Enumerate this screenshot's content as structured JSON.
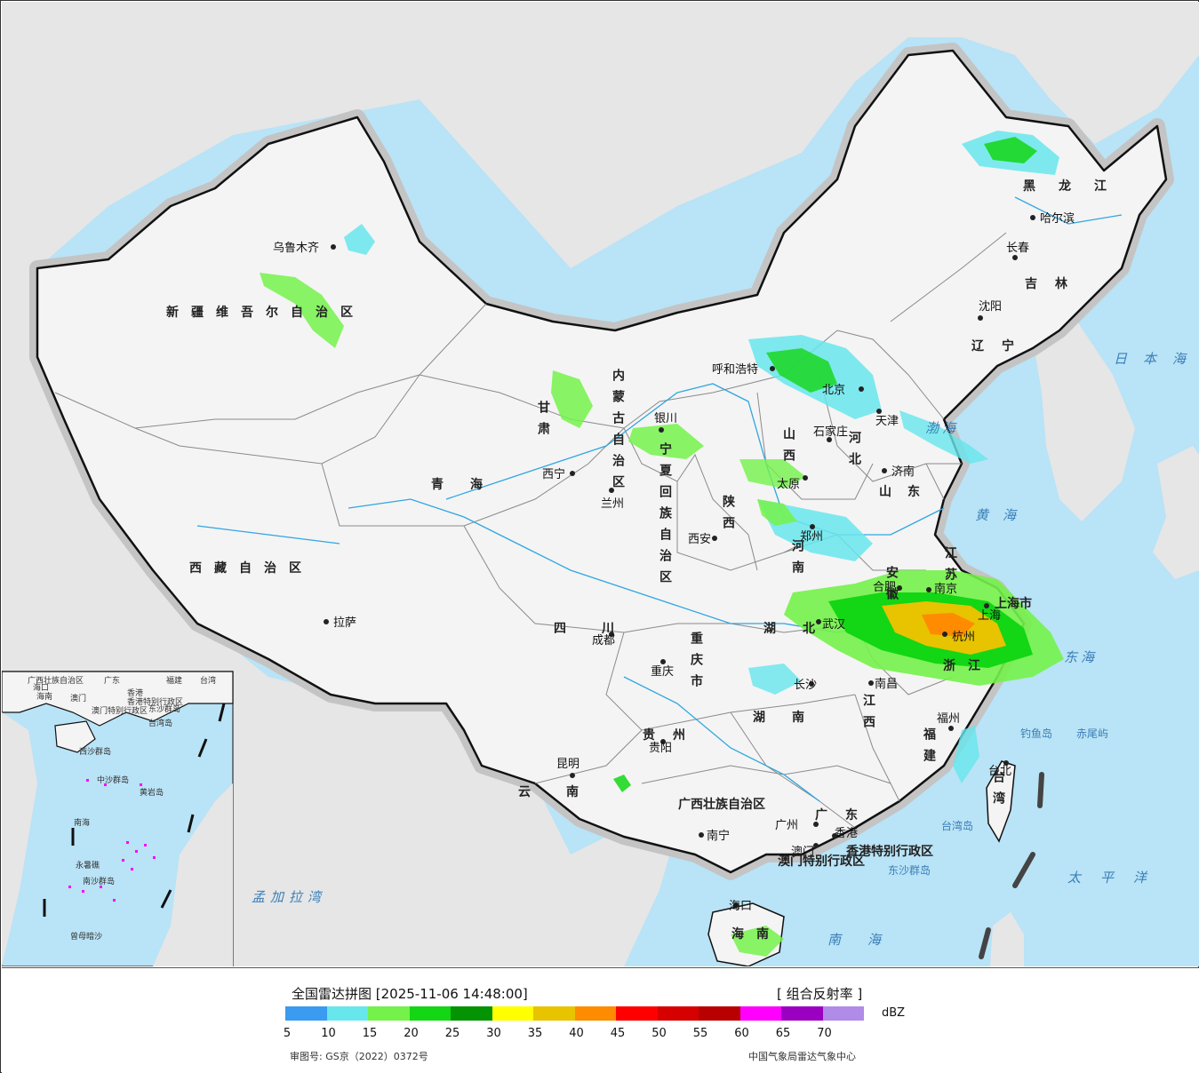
{
  "map": {
    "colors": {
      "sea": "#b9e3f6",
      "land_outside": "#e6e6e6",
      "china": "#f4f4f4",
      "border": "#111111",
      "halo": "#bdbdbd",
      "river": "#2fa6e0",
      "province_line": "#8a8a8a"
    },
    "cities": [
      "乌鲁木齐",
      "拉萨",
      "西宁",
      "兰州",
      "银川",
      "呼和浩特",
      "北京",
      "天津",
      "石家庄",
      "太原",
      "济南",
      "郑州",
      "西安",
      "成都",
      "重庆",
      "武汉",
      "合肥",
      "南京",
      "上海",
      "杭州",
      "南昌",
      "长沙",
      "贵阳",
      "昆明",
      "南宁",
      "广州",
      "福州",
      "台北",
      "香港",
      "澳门",
      "海口",
      "沈阳",
      "长春",
      "哈尔滨"
    ],
    "provinces": [
      "新疆维吾尔自治区",
      "西藏自治区",
      "青海",
      "甘肃",
      "宁夏回族自治区",
      "内蒙古自治区",
      "黑龙江",
      "吉林",
      "辽宁",
      "河北",
      "山西",
      "山东",
      "河南",
      "陕西",
      "四川",
      "重庆市",
      "湖北",
      "湖南",
      "安徽",
      "江苏",
      "上海市",
      "浙江",
      "江西",
      "福建",
      "贵州",
      "云南",
      "广西壮族自治区",
      "广东",
      "海南",
      "台湾",
      "香港特别行政区",
      "澳门特别行政区"
    ],
    "seas": [
      "日本海",
      "渤海",
      "黄海",
      "东海",
      "太平洋",
      "南海",
      "孟加拉湾"
    ],
    "islands": [
      "钓鱼岛",
      "赤尾屿",
      "台湾岛",
      "东沙群岛"
    ],
    "inset": {
      "labels": [
        "广西壮族自治区",
        "广东",
        "福建",
        "台湾",
        "海口",
        "海南",
        "澳门",
        "香港",
        "香港特别行政区",
        "澳门特别行政区",
        "东沙群岛",
        "台湾岛",
        "西沙群岛",
        "中沙群岛",
        "黄岩岛",
        "永暑礁",
        "南沙群岛",
        "曾母暗沙",
        "南海"
      ]
    }
  },
  "legend": {
    "title": "全国雷达拼图 [2025-11-06 14:48:00]",
    "product": "[ 组合反射率 ]",
    "unit": "dBZ",
    "colors": [
      "#3b9bf0",
      "#67e6ec",
      "#74f24a",
      "#13d614",
      "#039303",
      "#ffff00",
      "#e8c300",
      "#ff8b00",
      "#ff0000",
      "#d60000",
      "#b80000",
      "#ff00ff",
      "#9b00c1",
      "#b08be8"
    ],
    "ticks": [
      "5",
      "10",
      "15",
      "20",
      "25",
      "30",
      "35",
      "40",
      "45",
      "50",
      "55",
      "60",
      "65",
      "70"
    ],
    "map_approval": "审图号: GS京（2022）0372号",
    "source": "中国气象局雷达气象中心"
  }
}
